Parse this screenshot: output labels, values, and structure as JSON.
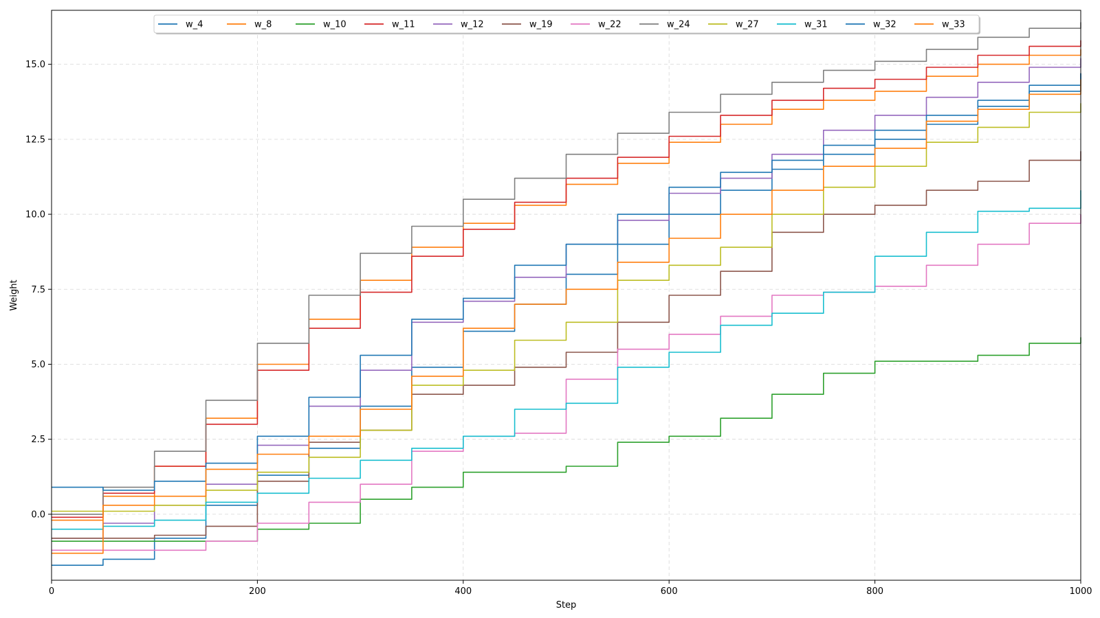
{
  "chart_data": {
    "type": "line",
    "title": "",
    "xlabel": "Step",
    "ylabel": "Weight",
    "xlim": [
      0,
      1000
    ],
    "ylim": [
      -2.2,
      16.8
    ],
    "xticks": [
      0,
      200,
      400,
      600,
      800,
      1000
    ],
    "xtick_labels": [
      "0",
      "200",
      "400",
      "600",
      "800",
      "1000"
    ],
    "yticks": [
      0,
      2.5,
      5,
      7.5,
      10,
      12.5,
      15
    ],
    "ytick_labels": [
      "0.0",
      "2.5",
      "5.0",
      "7.5",
      "10.0",
      "12.5",
      "15.0"
    ],
    "grid": true,
    "legend_position": "top-center",
    "x": [
      0,
      50,
      100,
      150,
      200,
      250,
      300,
      350,
      400,
      450,
      500,
      550,
      600,
      650,
      700,
      750,
      800,
      850,
      900,
      950,
      1000
    ],
    "series": [
      {
        "name": "w_4",
        "color": "#1f77b4",
        "values": [
          -1.7,
          -1.5,
          -0.8,
          0.3,
          1.3,
          2.2,
          3.6,
          4.9,
          6.1,
          7.0,
          8.0,
          9.0,
          10.0,
          10.8,
          11.5,
          12.0,
          12.5,
          13.0,
          13.6,
          14.1,
          14.7
        ]
      },
      {
        "name": "w_8",
        "color": "#ff7f0e",
        "values": [
          -0.2,
          0.6,
          1.6,
          3.2,
          5.0,
          6.5,
          7.8,
          8.9,
          9.7,
          10.3,
          11.0,
          11.7,
          12.4,
          13.0,
          13.5,
          13.8,
          14.1,
          14.6,
          15.0,
          15.3,
          15.5
        ]
      },
      {
        "name": "w_10",
        "color": "#2ca02c",
        "values": [
          -0.9,
          -0.9,
          -0.9,
          -0.9,
          -0.5,
          -0.3,
          0.5,
          0.9,
          1.4,
          1.4,
          1.6,
          2.4,
          2.6,
          3.2,
          4.0,
          4.7,
          5.1,
          5.1,
          5.3,
          5.7,
          5.9
        ]
      },
      {
        "name": "w_11",
        "color": "#d62728",
        "values": [
          -0.1,
          0.7,
          1.6,
          3.0,
          4.8,
          6.2,
          7.4,
          8.6,
          9.5,
          10.4,
          11.2,
          11.9,
          12.6,
          13.3,
          13.8,
          14.2,
          14.5,
          14.9,
          15.3,
          15.6,
          15.8
        ]
      },
      {
        "name": "w_12",
        "color": "#9467bd",
        "values": [
          -0.8,
          -0.3,
          0.3,
          1.0,
          2.3,
          3.6,
          4.8,
          6.4,
          7.1,
          7.9,
          9.0,
          9.8,
          10.7,
          11.2,
          12.0,
          12.8,
          13.3,
          13.9,
          14.4,
          14.9,
          15.2
        ]
      },
      {
        "name": "w_19",
        "color": "#8c564b",
        "values": [
          -0.8,
          -0.8,
          -0.7,
          -0.4,
          1.1,
          2.4,
          2.8,
          4.0,
          4.3,
          4.9,
          5.4,
          6.4,
          7.3,
          8.1,
          9.4,
          10.0,
          10.3,
          10.8,
          11.1,
          11.8,
          12.1
        ]
      },
      {
        "name": "w_22",
        "color": "#e377c2",
        "values": [
          -1.2,
          -1.2,
          -1.2,
          -0.9,
          -0.3,
          0.4,
          1.0,
          2.1,
          2.6,
          2.7,
          4.5,
          5.5,
          6.0,
          6.6,
          7.3,
          7.4,
          7.6,
          8.3,
          9.0,
          9.7,
          10.0
        ]
      },
      {
        "name": "w_24",
        "color": "#7f7f7f",
        "values": [
          0.0,
          0.9,
          2.1,
          3.8,
          5.7,
          7.3,
          8.7,
          9.6,
          10.5,
          11.2,
          12.0,
          12.7,
          13.4,
          14.0,
          14.4,
          14.8,
          15.1,
          15.5,
          15.9,
          16.2,
          16.4
        ]
      },
      {
        "name": "w_27",
        "color": "#bcbd22",
        "values": [
          0.1,
          0.1,
          0.3,
          0.8,
          1.4,
          1.9,
          2.8,
          4.3,
          4.8,
          5.8,
          6.4,
          7.8,
          8.3,
          8.9,
          10.0,
          10.9,
          11.6,
          12.4,
          12.9,
          13.4,
          13.7
        ]
      },
      {
        "name": "w_31",
        "color": "#17becf",
        "values": [
          -0.5,
          -0.4,
          -0.2,
          0.4,
          0.7,
          1.2,
          1.8,
          2.2,
          2.6,
          3.5,
          3.7,
          4.9,
          5.4,
          6.3,
          6.7,
          7.4,
          8.6,
          9.4,
          10.1,
          10.2,
          10.8
        ]
      },
      {
        "name": "w_32",
        "color": "#1f77b4",
        "values": [
          0.9,
          0.8,
          1.1,
          1.7,
          2.6,
          3.9,
          5.3,
          6.5,
          7.2,
          8.3,
          9.0,
          10.0,
          10.9,
          11.4,
          11.8,
          12.3,
          12.8,
          13.3,
          13.8,
          14.3,
          14.7
        ]
      },
      {
        "name": "w_33",
        "color": "#ff7f0e",
        "values": [
          -1.3,
          0.3,
          0.6,
          1.5,
          2.0,
          2.6,
          3.5,
          4.6,
          6.2,
          7.0,
          7.5,
          8.4,
          9.2,
          10.0,
          10.8,
          11.6,
          12.2,
          13.1,
          13.5,
          14.0,
          14.5
        ]
      }
    ]
  }
}
